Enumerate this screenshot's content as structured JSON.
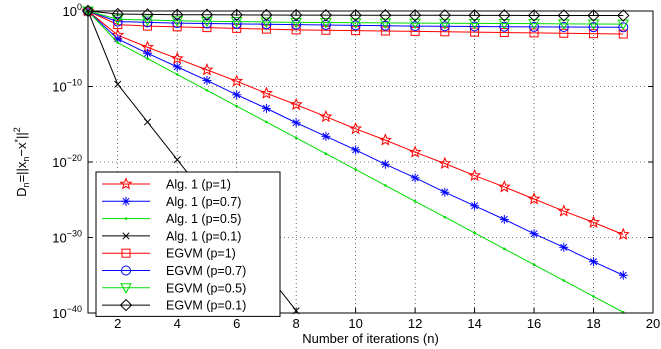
{
  "chart_data": {
    "type": "line",
    "title": "",
    "xlabel": "Number of iterations (n)",
    "ylabel": "D_n=||x_n-x*||^2",
    "ylabel_parts": {
      "main": "D",
      "sub_n": "n",
      "eq": "=||x",
      "sub_n2": "n",
      "minus": "−x",
      "star": "*",
      "bars": "||",
      "sq": "2"
    },
    "xlim": [
      1,
      20
    ],
    "y_log_exponent_lim": [
      -40,
      0
    ],
    "y_scale": "log",
    "grid": "on, dotted",
    "x_ticks": [
      2,
      4,
      6,
      8,
      10,
      12,
      14,
      16,
      18,
      20
    ],
    "x_tick_labels": [
      "2",
      "4",
      "6",
      "8",
      "10",
      "12",
      "14",
      "16",
      "18",
      "20"
    ],
    "y_ticks": [
      {
        "exp": 0,
        "base": "10",
        "sup": "0"
      },
      {
        "exp": -10,
        "base": "10",
        "sup": "−10"
      },
      {
        "exp": -20,
        "base": "10",
        "sup": "−20"
      },
      {
        "exp": -30,
        "base": "10",
        "sup": "−30"
      },
      {
        "exp": -40,
        "base": "10",
        "sup": "−40"
      }
    ],
    "legend_position": "bottom-left",
    "x": [
      1,
      2,
      3,
      4,
      5,
      6,
      7,
      8,
      9,
      10,
      11,
      12,
      13,
      14,
      15,
      16,
      17,
      18,
      19
    ],
    "series": [
      {
        "name": "Alg. 1 (p=1)",
        "color": "#ff0000",
        "marker": "star",
        "log10_y": [
          0,
          -3.2,
          -4.8,
          -6.3,
          -7.8,
          -9.3,
          -10.9,
          -12.4,
          -14.0,
          -15.6,
          -17.1,
          -18.7,
          -20.2,
          -21.8,
          -23.3,
          -24.9,
          -26.5,
          -28.0,
          -29.6
        ]
      },
      {
        "name": "Alg. 1 (p=0.7)",
        "color": "#0000ff",
        "marker": "asterisk",
        "log10_y": [
          0,
          -3.7,
          -5.6,
          -7.4,
          -9.2,
          -11.1,
          -12.9,
          -14.8,
          -16.6,
          -18.4,
          -20.3,
          -22.1,
          -24.0,
          -25.8,
          -27.6,
          -29.5,
          -31.3,
          -33.2,
          -35.0
        ]
      },
      {
        "name": "Alg. 1 (p=0.5)",
        "color": "#00dd00",
        "marker": "dot",
        "log10_y": [
          0,
          -4.2,
          -6.3,
          -8.4,
          -10.5,
          -12.6,
          -14.7,
          -16.8,
          -18.9,
          -21.0,
          -23.1,
          -25.2,
          -27.3,
          -29.4,
          -31.5,
          -33.6,
          -35.7,
          -37.8,
          -39.9
        ]
      },
      {
        "name": "Alg. 1 (p=0.1)",
        "color": "#000000",
        "marker": "x",
        "log10_y": [
          0,
          -9.7,
          -14.7,
          -19.7,
          -24.7,
          -29.7,
          -34.7,
          -39.7,
          -44.7,
          -49.7,
          -54.7,
          -59.7,
          -64.7,
          -69.7,
          -74.7,
          -79.7,
          -84.7,
          -89.7,
          -94.7
        ]
      },
      {
        "name": "EGVM (p=1)",
        "color": "#ff0000",
        "marker": "square",
        "log10_y": [
          0,
          -1.8,
          -2.0,
          -2.1,
          -2.2,
          -2.3,
          -2.4,
          -2.5,
          -2.55,
          -2.6,
          -2.65,
          -2.7,
          -2.75,
          -2.8,
          -2.85,
          -2.9,
          -2.95,
          -3.0,
          -3.05
        ]
      },
      {
        "name": "EGVM (p=0.7)",
        "color": "#0000ff",
        "marker": "circle",
        "log10_y": [
          0,
          -1.4,
          -1.5,
          -1.6,
          -1.65,
          -1.7,
          -1.75,
          -1.8,
          -1.85,
          -1.9,
          -1.95,
          -2.0,
          -2.02,
          -2.05,
          -2.08,
          -2.1,
          -2.12,
          -2.14,
          -2.16
        ]
      },
      {
        "name": "EGVM (p=0.5)",
        "color": "#00dd00",
        "marker": "triangle-down",
        "log10_y": [
          0,
          -1.1,
          -1.2,
          -1.3,
          -1.35,
          -1.4,
          -1.45,
          -1.5,
          -1.52,
          -1.55,
          -1.58,
          -1.6,
          -1.62,
          -1.64,
          -1.66,
          -1.68,
          -1.7,
          -1.72,
          -1.74
        ]
      },
      {
        "name": "EGVM (p=0.1)",
        "color": "#000000",
        "marker": "diamond",
        "log10_y": [
          0,
          -0.4,
          -0.45,
          -0.5,
          -0.5,
          -0.52,
          -0.53,
          -0.54,
          -0.55,
          -0.56,
          -0.56,
          -0.57,
          -0.57,
          -0.58,
          -0.58,
          -0.59,
          -0.59,
          -0.6,
          -0.6
        ]
      }
    ]
  }
}
